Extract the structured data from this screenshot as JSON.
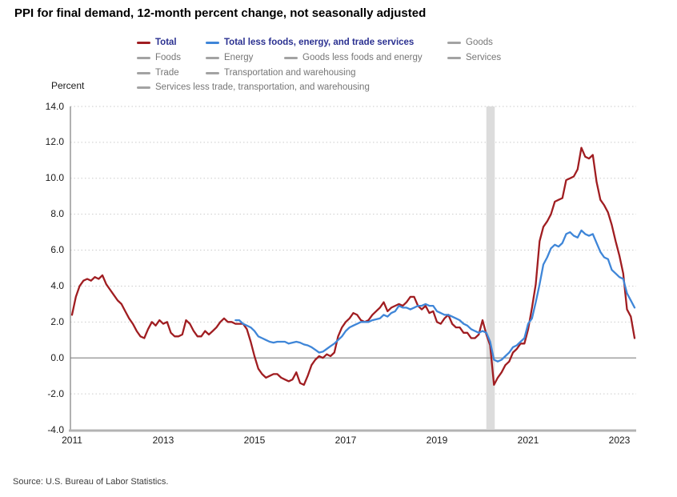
{
  "header": {
    "title": "PPI for final demand, 12-month percent change, not seasonally adjusted"
  },
  "footer": {
    "source": "Source: U.S. Bureau of Labor Statistics."
  },
  "colors": {
    "total_line": "#a01d21",
    "core_line": "#3f86d8",
    "legend_active_text": "#2b3191",
    "legend_inactive_text": "#767676",
    "legend_inactive_swatch": "#a3a3a3",
    "recession_band": "#dcdcdc",
    "gridline": "#cbcbcb",
    "zero_line": "#8f8f8f",
    "left_axis": "#7d7d7d",
    "bottom_axis": "#b3b3b3"
  },
  "legend": {
    "items": [
      {
        "label": "Total",
        "swatch": "#a01d21",
        "active": true,
        "row": 1,
        "col": 1
      },
      {
        "label": "Total less foods, energy, and trade services",
        "swatch": "#3f86d8",
        "active": true,
        "row": 1,
        "col": 2
      },
      {
        "label": "Goods",
        "swatch": "#a3a3a3",
        "active": false,
        "row": 1,
        "col": 4
      },
      {
        "label": "Foods",
        "swatch": "#a3a3a3",
        "active": false,
        "row": 2,
        "col": 1
      },
      {
        "label": "Energy",
        "swatch": "#a3a3a3",
        "active": false,
        "row": 2,
        "col": 2
      },
      {
        "label": "Goods less foods and energy",
        "swatch": "#a3a3a3",
        "active": false,
        "row": 2,
        "col": 3
      },
      {
        "label": "Services",
        "swatch": "#a3a3a3",
        "active": false,
        "row": 2,
        "col": 4
      },
      {
        "label": "Trade",
        "swatch": "#a3a3a3",
        "active": false,
        "row": 3,
        "col": 1
      },
      {
        "label": "Transportation and warehousing",
        "swatch": "#a3a3a3",
        "active": false,
        "row": 3,
        "col": 2
      },
      {
        "label": "Services less trade, transportation, and warehousing",
        "swatch": "#a3a3a3",
        "active": false,
        "row": 4,
        "col": 1
      }
    ]
  },
  "chart_data": {
    "type": "line",
    "title": "PPI for final demand, 12-month percent change, not seasonally adjusted",
    "xlabel": "",
    "ylabel": "Percent",
    "frequency": "monthly",
    "ylim": [
      -4,
      14
    ],
    "ytick_step": 2,
    "xticks": [
      2011,
      2013,
      2015,
      2017,
      2019,
      2021,
      2023
    ],
    "grid": "dotted-horizontal",
    "legend_position": "top",
    "recession_band": {
      "start": "2020-02",
      "end": "2020-04"
    },
    "series": [
      {
        "id": "total",
        "name": "Total",
        "color": "#a01d21",
        "start": "2011-01",
        "values": [
          2.4,
          3.4,
          4.0,
          4.3,
          4.4,
          4.3,
          4.5,
          4.4,
          4.6,
          4.1,
          3.8,
          3.5,
          3.2,
          3.0,
          2.6,
          2.2,
          1.9,
          1.5,
          1.2,
          1.1,
          1.6,
          2.0,
          1.8,
          2.1,
          1.9,
          2.0,
          1.4,
          1.2,
          1.2,
          1.3,
          2.1,
          1.9,
          1.5,
          1.2,
          1.2,
          1.5,
          1.3,
          1.5,
          1.7,
          2.0,
          2.2,
          2.0,
          2.0,
          1.9,
          1.9,
          1.9,
          1.6,
          0.9,
          0.1,
          -0.6,
          -0.9,
          -1.1,
          -1.0,
          -0.9,
          -0.9,
          -1.1,
          -1.2,
          -1.3,
          -1.2,
          -0.8,
          -1.4,
          -1.5,
          -1.0,
          -0.4,
          -0.1,
          0.1,
          0.0,
          0.2,
          0.1,
          0.3,
          1.2,
          1.7,
          2.0,
          2.2,
          2.5,
          2.4,
          2.1,
          2.0,
          2.1,
          2.4,
          2.6,
          2.8,
          3.1,
          2.6,
          2.8,
          2.9,
          3.0,
          2.9,
          3.1,
          3.4,
          3.4,
          2.9,
          2.7,
          2.9,
          2.5,
          2.6,
          2.0,
          1.9,
          2.2,
          2.4,
          1.9,
          1.7,
          1.7,
          1.4,
          1.4,
          1.1,
          1.1,
          1.3,
          2.1,
          1.3,
          0.7,
          -1.5,
          -1.1,
          -0.8,
          -0.4,
          -0.2,
          0.3,
          0.5,
          0.8,
          0.8,
          1.6,
          2.8,
          4.1,
          6.5,
          7.3,
          7.6,
          8.0,
          8.7,
          8.8,
          8.9,
          9.9,
          10.0,
          10.1,
          10.5,
          11.7,
          11.2,
          11.1,
          11.3,
          9.8,
          8.8,
          8.5,
          8.1,
          7.4,
          6.5,
          5.7,
          4.7,
          2.7,
          2.3,
          1.1
        ]
      },
      {
        "id": "total-less-foods-energy-trade",
        "name": "Total less foods, energy, and trade services",
        "color": "#3f86d8",
        "start": "2014-08",
        "values": [
          2.1,
          2.1,
          1.9,
          1.8,
          1.7,
          1.5,
          1.2,
          1.1,
          1.0,
          0.9,
          0.85,
          0.9,
          0.9,
          0.9,
          0.8,
          0.85,
          0.9,
          0.85,
          0.75,
          0.7,
          0.6,
          0.45,
          0.3,
          0.35,
          0.5,
          0.65,
          0.8,
          1.0,
          1.2,
          1.5,
          1.7,
          1.8,
          1.9,
          2.0,
          2.0,
          2.0,
          2.1,
          2.15,
          2.2,
          2.4,
          2.3,
          2.5,
          2.6,
          2.9,
          2.8,
          2.8,
          2.7,
          2.8,
          2.9,
          2.9,
          3.0,
          2.9,
          2.9,
          2.6,
          2.5,
          2.4,
          2.4,
          2.3,
          2.2,
          2.1,
          1.9,
          1.8,
          1.6,
          1.5,
          1.4,
          1.5,
          1.4,
          0.9,
          -0.1,
          -0.2,
          -0.1,
          0.1,
          0.3,
          0.6,
          0.7,
          0.9,
          1.1,
          1.9,
          2.2,
          3.1,
          4.1,
          5.2,
          5.6,
          6.1,
          6.3,
          6.2,
          6.4,
          6.9,
          7.0,
          6.8,
          6.7,
          7.1,
          6.9,
          6.8,
          6.9,
          6.4,
          5.9,
          5.6,
          5.5,
          4.9,
          4.7,
          4.5,
          4.4,
          3.6,
          3.2,
          2.8
        ]
      }
    ]
  }
}
